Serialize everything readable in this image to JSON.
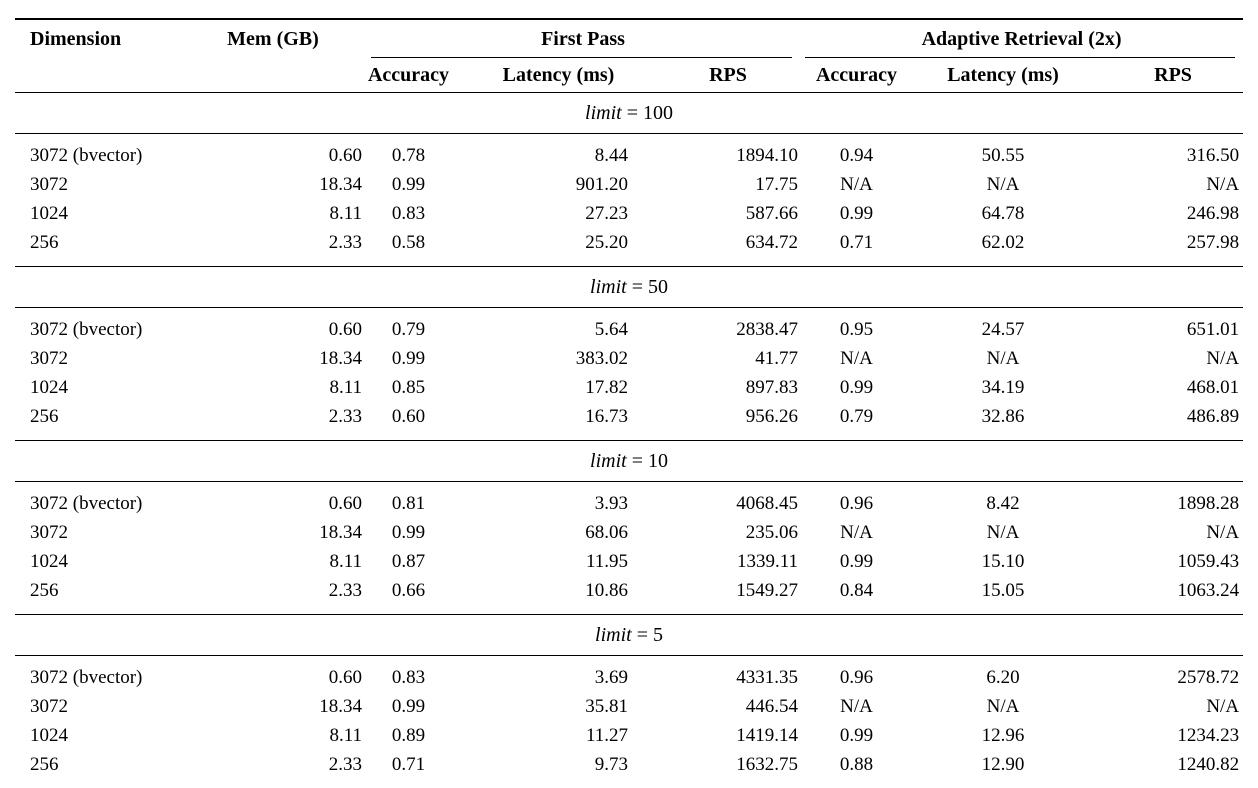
{
  "table": {
    "header": {
      "dimension": "Dimension",
      "mem": "Mem (GB)",
      "first_pass_group": "First Pass",
      "adaptive_group": "Adaptive Retrieval (2x)",
      "sub": {
        "fp_accuracy": "Accuracy",
        "fp_latency": "Latency (ms)",
        "fp_rps": "RPS",
        "ar_accuracy": "Accuracy",
        "ar_latency": "Latency (ms)",
        "ar_rps": "RPS"
      }
    },
    "sections": [
      {
        "title_var": "limit",
        "title_rest": "= 100",
        "rows": [
          [
            "3072 (bvector)",
            "0.60",
            "0.78",
            "8.44",
            "1894.10",
            "0.94",
            "50.55",
            "316.50"
          ],
          [
            "3072",
            "18.34",
            "0.99",
            "901.20",
            "17.75",
            "N/A",
            "N/A",
            "N/A"
          ],
          [
            "1024",
            "8.11",
            "0.83",
            "27.23",
            "587.66",
            "0.99",
            "64.78",
            "246.98"
          ],
          [
            "256",
            "2.33",
            "0.58",
            "25.20",
            "634.72",
            "0.71",
            "62.02",
            "257.98"
          ]
        ]
      },
      {
        "title_var": "limit",
        "title_rest": "= 50",
        "rows": [
          [
            "3072 (bvector)",
            "0.60",
            "0.79",
            "5.64",
            "2838.47",
            "0.95",
            "24.57",
            "651.01"
          ],
          [
            "3072",
            "18.34",
            "0.99",
            "383.02",
            "41.77",
            "N/A",
            "N/A",
            "N/A"
          ],
          [
            "1024",
            "8.11",
            "0.85",
            "17.82",
            "897.83",
            "0.99",
            "34.19",
            "468.01"
          ],
          [
            "256",
            "2.33",
            "0.60",
            "16.73",
            "956.26",
            "0.79",
            "32.86",
            "486.89"
          ]
        ]
      },
      {
        "title_var": "limit",
        "title_rest": "= 10",
        "rows": [
          [
            "3072 (bvector)",
            "0.60",
            "0.81",
            "3.93",
            "4068.45",
            "0.96",
            "8.42",
            "1898.28"
          ],
          [
            "3072",
            "18.34",
            "0.99",
            "68.06",
            "235.06",
            "N/A",
            "N/A",
            "N/A"
          ],
          [
            "1024",
            "8.11",
            "0.87",
            "11.95",
            "1339.11",
            "0.99",
            "15.10",
            "1059.43"
          ],
          [
            "256",
            "2.33",
            "0.66",
            "10.86",
            "1549.27",
            "0.84",
            "15.05",
            "1063.24"
          ]
        ]
      },
      {
        "title_var": "limit",
        "title_rest": "= 5",
        "rows": [
          [
            "3072 (bvector)",
            "0.60",
            "0.83",
            "3.69",
            "4331.35",
            "0.96",
            "6.20",
            "2578.72"
          ],
          [
            "3072",
            "18.34",
            "0.99",
            "35.81",
            "446.54",
            "N/A",
            "N/A",
            "N/A"
          ],
          [
            "1024",
            "8.11",
            "0.89",
            "11.27",
            "1419.14",
            "0.99",
            "12.96",
            "1234.23"
          ],
          [
            "256",
            "2.33",
            "0.71",
            "9.73",
            "1632.75",
            "0.88",
            "12.90",
            "1240.82"
          ]
        ]
      }
    ]
  }
}
